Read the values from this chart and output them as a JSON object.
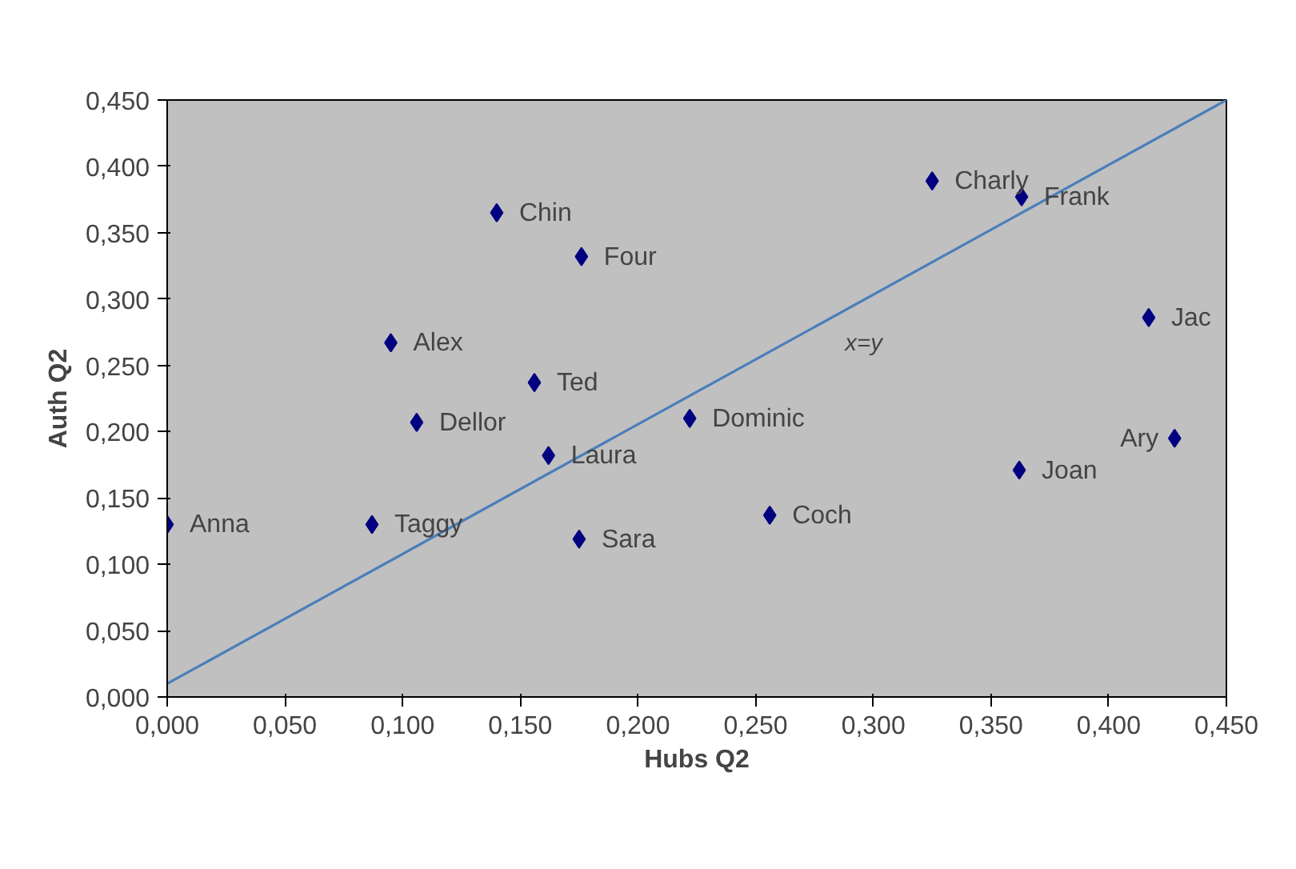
{
  "chart_data": {
    "type": "scatter",
    "xlabel": "Hubs Q2",
    "ylabel": "Auth Q2",
    "grid": false,
    "xlim": [
      0,
      0.45
    ],
    "ylim": [
      0,
      0.45
    ],
    "xticks": [
      {
        "value": 0,
        "label": "0,000"
      },
      {
        "value": 0.05,
        "label": "0,050"
      },
      {
        "value": 0.1,
        "label": "0,100"
      },
      {
        "value": 0.15,
        "label": "0,150"
      },
      {
        "value": 0.2,
        "label": "0,200"
      },
      {
        "value": 0.25,
        "label": "0,250"
      },
      {
        "value": 0.3,
        "label": "0,300"
      },
      {
        "value": 0.35,
        "label": "0,350"
      },
      {
        "value": 0.4,
        "label": "0,400"
      },
      {
        "value": 0.45,
        "label": "0,450"
      }
    ],
    "yticks": [
      {
        "value": 0,
        "label": "0,000"
      },
      {
        "value": 0.05,
        "label": "0,050"
      },
      {
        "value": 0.1,
        "label": "0,100"
      },
      {
        "value": 0.15,
        "label": "0,150"
      },
      {
        "value": 0.2,
        "label": "0,200"
      },
      {
        "value": 0.25,
        "label": "0,250"
      },
      {
        "value": 0.3,
        "label": "0,300"
      },
      {
        "value": 0.35,
        "label": "0,350"
      },
      {
        "value": 0.4,
        "label": "0,400"
      },
      {
        "value": 0.45,
        "label": "0,450"
      }
    ],
    "series": [
      {
        "marker": "diamond",
        "color": "#000080",
        "x": [
          0,
          0.087,
          0.175,
          0.256,
          0.362,
          0.428,
          0.417,
          0.363,
          0.325,
          0.222,
          0.162,
          0.156,
          0.106,
          0.095,
          0.14,
          0.176
        ],
        "values": [
          0.13,
          0.13,
          0.119,
          0.137,
          0.171,
          0.195,
          0.286,
          0.377,
          0.389,
          0.21,
          0.182,
          0.237,
          0.207,
          0.267,
          0.365,
          0.332
        ]
      },
      {
        "type": "line",
        "color": "#4a7ebb",
        "x": [
          0,
          0.45
        ],
        "values": [
          0.01,
          0.45
        ]
      }
    ],
    "annotations": [
      {
        "text": "Anna",
        "x": 0,
        "y": 0.13
      },
      {
        "text": "Taggy",
        "x": 0.087,
        "y": 0.13
      },
      {
        "text": "Sara",
        "x": 0.175,
        "y": 0.119
      },
      {
        "text": "Coch",
        "x": 0.256,
        "y": 0.137
      },
      {
        "text": "Joan",
        "x": 0.362,
        "y": 0.171
      },
      {
        "text": "Ary",
        "x": 0.428,
        "y": 0.195
      },
      {
        "text": "Jac",
        "x": 0.417,
        "y": 0.286
      },
      {
        "text": "Frank",
        "x": 0.363,
        "y": 0.377
      },
      {
        "text": "Charly",
        "x": 0.325,
        "y": 0.389
      },
      {
        "text": "Dominic",
        "x": 0.222,
        "y": 0.21
      },
      {
        "text": "Laura",
        "x": 0.162,
        "y": 0.182
      },
      {
        "text": "Ted",
        "x": 0.156,
        "y": 0.237
      },
      {
        "text": "Dellor",
        "x": 0.106,
        "y": 0.207
      },
      {
        "text": "Alex",
        "x": 0.095,
        "y": 0.267
      },
      {
        "text": "Chin",
        "x": 0.14,
        "y": 0.365
      },
      {
        "text": "Four",
        "x": 0.176,
        "y": 0.332
      },
      "x=y"
    ]
  }
}
